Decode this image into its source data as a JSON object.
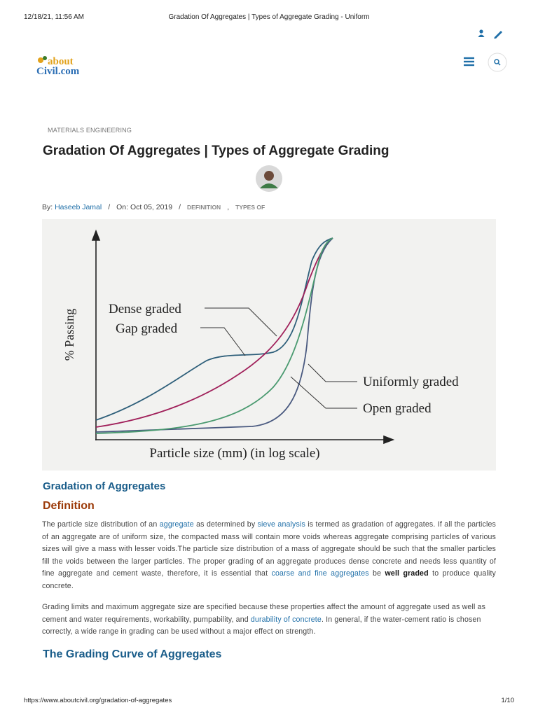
{
  "print_header": {
    "datetime": "12/18/21, 11:56 AM",
    "title": "Gradation Of Aggregates | Types of Aggregate Grading - Uniform"
  },
  "logo": {
    "top": "about",
    "bottom": "Civil.com"
  },
  "article": {
    "category": "MATERIALS ENGINEERING",
    "title": "Gradation Of Aggregates | Types of Aggregate Grading",
    "byline": {
      "by_label": "By:",
      "author": "Haseeb Jamal",
      "date": "On: Oct 05, 2019",
      "separators": [
        "/",
        "/",
        ","
      ],
      "tags": [
        "DEFINITION",
        "TYPES OF"
      ]
    },
    "figure": {
      "y_label": "% Passing",
      "x_label": "Particle size (mm) (in log scale)",
      "curve_labels": [
        "Dense graded",
        "Gap graded",
        "Uniformly graded",
        "Open graded"
      ]
    },
    "section_title": "Gradation of Aggregates",
    "subsection_title": "Definition",
    "paragraph1": [
      "The particle size distribution of an ",
      "aggregate",
      " as determined by ",
      "sieve analysis",
      " is termed as gradation of aggregates. If all the particles of an aggregate are of uniform size, the compacted mass will contain more voids whereas aggregate comprising particles of various sizes will give a mass with lesser voids.The particle size distribution of a mass of aggregate should be such that the smaller particles fill the voids between the larger particles. The proper grading of an aggregate produces dense concrete and needs less quantity of fine aggregate and cement waste, therefore, it is essential that ",
      "coarse and fine aggregates",
      " be ",
      "well graded",
      " to produce quality concrete."
    ],
    "paragraph2": [
      "Grading limits and maximum aggregate size are specified because these properties affect the amount of aggregate used as well as cement and water requirements, workability, pumpability, and ",
      "durability of concrete",
      ". In general, if the water-cement ratio is chosen correctly, a wide range in grading can be used without a major effect on strength."
    ],
    "next_section_title": "The Grading Curve of Aggregates"
  },
  "print_footer": {
    "url": "https://www.aboutcivil.org/gradation-of-aggregates",
    "page": "1/10"
  }
}
